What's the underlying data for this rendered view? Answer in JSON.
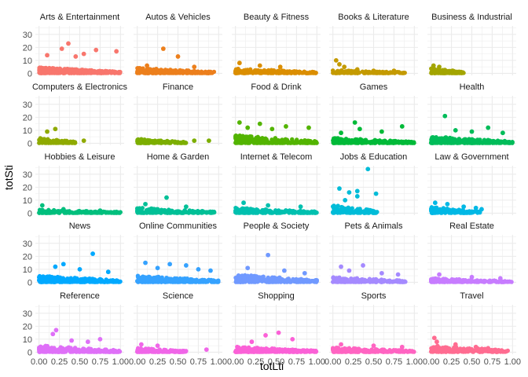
{
  "chart_data": {
    "type": "scatter",
    "layout": "facet-grid",
    "xlabel": "totLti",
    "ylabel": "totSti",
    "xlim": [
      0,
      1
    ],
    "ylim": [
      0,
      35
    ],
    "x_ticks": [
      "0.00",
      "0.25",
      "0.50",
      "0.75",
      "1.00"
    ],
    "y_ticks": [
      "0",
      "10",
      "20",
      "30"
    ],
    "grid": true,
    "legend": "none",
    "panels": [
      {
        "name": "Arts & Entertainment",
        "color": "#F8766D",
        "density": 1.0,
        "x_max": 1.0,
        "base_max": 4.5,
        "outliers": [
          [
            0.36,
            23
          ],
          [
            0.28,
            19
          ],
          [
            0.7,
            18
          ],
          [
            0.95,
            17
          ],
          [
            0.55,
            15
          ],
          [
            0.1,
            14
          ],
          [
            0.45,
            13
          ]
        ]
      },
      {
        "name": "Autos & Vehicles",
        "color": "#EC7F1C",
        "density": 0.6,
        "x_max": 0.95,
        "base_max": 4,
        "outliers": [
          [
            0.32,
            19
          ],
          [
            0.5,
            13
          ],
          [
            0.12,
            6
          ],
          [
            0.7,
            5
          ]
        ]
      },
      {
        "name": "Beauty & Fitness",
        "color": "#DB8E00",
        "density": 0.6,
        "x_max": 1.0,
        "base_max": 3.5,
        "outliers": [
          [
            0.05,
            8
          ],
          [
            0.3,
            6
          ],
          [
            0.55,
            5
          ]
        ]
      },
      {
        "name": "Books & Literature",
        "color": "#C49A00",
        "density": 0.25,
        "x_max": 0.9,
        "base_max": 2.5,
        "outliers": [
          [
            0.04,
            10
          ],
          [
            0.08,
            7
          ],
          [
            0.14,
            5
          ],
          [
            0.3,
            3
          ],
          [
            0.5,
            2
          ],
          [
            0.75,
            2
          ]
        ]
      },
      {
        "name": "Business & Industrial",
        "color": "#A3A500",
        "density": 0.3,
        "x_max": 0.4,
        "base_max": 4,
        "outliers": [
          [
            0.03,
            6
          ],
          [
            0.1,
            5
          ]
        ]
      },
      {
        "name": "Computers & Electronics",
        "color": "#8FAA00",
        "density": 0.25,
        "x_max": 0.45,
        "base_max": 4,
        "outliers": [
          [
            0.2,
            11
          ],
          [
            0.1,
            9
          ],
          [
            0.55,
            2
          ]
        ]
      },
      {
        "name": "Finance",
        "color": "#7CAE00",
        "density": 0.25,
        "x_max": 0.6,
        "base_max": 3,
        "outliers": [
          [
            0.7,
            2
          ],
          [
            0.88,
            2
          ],
          [
            0.05,
            3
          ]
        ]
      },
      {
        "name": "Food & Drink",
        "color": "#53B400",
        "density": 1.0,
        "x_max": 1.0,
        "base_max": 6,
        "outliers": [
          [
            0.05,
            16
          ],
          [
            0.3,
            15
          ],
          [
            0.62,
            13
          ],
          [
            0.9,
            12
          ],
          [
            0.45,
            11
          ],
          [
            0.15,
            12
          ]
        ]
      },
      {
        "name": "Games",
        "color": "#00BA38",
        "density": 0.7,
        "x_max": 1.0,
        "base_max": 4,
        "outliers": [
          [
            0.27,
            16
          ],
          [
            0.33,
            11
          ],
          [
            0.6,
            9
          ],
          [
            0.85,
            13
          ],
          [
            0.1,
            8
          ]
        ]
      },
      {
        "name": "Health",
        "color": "#00BC59",
        "density": 0.8,
        "x_max": 1.0,
        "base_max": 5,
        "outliers": [
          [
            0.17,
            21
          ],
          [
            0.7,
            12
          ],
          [
            0.5,
            9
          ],
          [
            0.3,
            10
          ],
          [
            0.88,
            8
          ]
        ]
      },
      {
        "name": "Hobbies & Leisure",
        "color": "#00BF7D",
        "density": 0.45,
        "x_max": 1.0,
        "base_max": 2.5,
        "outliers": [
          [
            0.04,
            6
          ],
          [
            0.3,
            3
          ],
          [
            0.75,
            2
          ],
          [
            0.95,
            1
          ]
        ]
      },
      {
        "name": "Home & Garden",
        "color": "#00C097",
        "density": 0.45,
        "x_max": 0.95,
        "base_max": 4,
        "outliers": [
          [
            0.36,
            12
          ],
          [
            0.1,
            7
          ],
          [
            0.6,
            5
          ]
        ]
      },
      {
        "name": "Internet & Telecom",
        "color": "#00C0AF",
        "density": 0.55,
        "x_max": 1.0,
        "base_max": 4,
        "outliers": [
          [
            0.1,
            8
          ],
          [
            0.4,
            6
          ],
          [
            0.8,
            5
          ]
        ]
      },
      {
        "name": "Jobs & Education",
        "color": "#00BCD8",
        "density": 0.3,
        "x_max": 0.55,
        "base_max": 6,
        "outliers": [
          [
            0.43,
            34
          ],
          [
            0.08,
            19
          ],
          [
            0.3,
            17
          ],
          [
            0.2,
            16
          ],
          [
            0.53,
            15
          ],
          [
            0.3,
            13
          ],
          [
            0.15,
            10
          ]
        ]
      },
      {
        "name": "Law & Government",
        "color": "#00B8E5",
        "density": 0.3,
        "x_max": 0.6,
        "base_max": 5,
        "outliers": [
          [
            0.05,
            8
          ],
          [
            0.2,
            7
          ],
          [
            0.4,
            5
          ],
          [
            0.55,
            4
          ],
          [
            0.62,
            3
          ]
        ]
      },
      {
        "name": "News",
        "color": "#00A9FF",
        "density": 0.8,
        "x_max": 1.0,
        "base_max": 5,
        "outliers": [
          [
            0.66,
            22
          ],
          [
            0.3,
            14
          ],
          [
            0.2,
            12
          ],
          [
            0.5,
            10
          ],
          [
            0.85,
            8
          ]
        ]
      },
      {
        "name": "Online Communities",
        "color": "#35A2FF",
        "density": 0.8,
        "x_max": 1.0,
        "base_max": 5,
        "outliers": [
          [
            0.1,
            15
          ],
          [
            0.4,
            14
          ],
          [
            0.6,
            13
          ],
          [
            0.25,
            11
          ],
          [
            0.75,
            10
          ],
          [
            0.9,
            9
          ]
        ]
      },
      {
        "name": "People & Society",
        "color": "#7099FF",
        "density": 0.6,
        "x_max": 1.0,
        "base_max": 6,
        "outliers": [
          [
            0.4,
            21
          ],
          [
            0.15,
            11
          ],
          [
            0.6,
            9
          ],
          [
            0.85,
            7
          ]
        ]
      },
      {
        "name": "Pets & Animals",
        "color": "#A58AFF",
        "density": 0.4,
        "x_max": 0.9,
        "base_max": 4,
        "outliers": [
          [
            0.37,
            13
          ],
          [
            0.1,
            12
          ],
          [
            0.2,
            9
          ],
          [
            0.6,
            7
          ],
          [
            0.8,
            6
          ]
        ]
      },
      {
        "name": "Real Estate",
        "color": "#C77CFF",
        "density": 0.55,
        "x_max": 1.0,
        "base_max": 3,
        "outliers": [
          [
            0.1,
            6
          ],
          [
            0.5,
            4
          ],
          [
            0.85,
            3
          ]
        ]
      },
      {
        "name": "Reference",
        "color": "#DF70F8",
        "density": 0.8,
        "x_max": 1.0,
        "base_max": 5,
        "outliers": [
          [
            0.21,
            17
          ],
          [
            0.17,
            14
          ],
          [
            0.75,
            10
          ],
          [
            0.4,
            9
          ],
          [
            0.6,
            8
          ]
        ]
      },
      {
        "name": "Science",
        "color": "#F066E8",
        "density": 0.35,
        "x_max": 0.6,
        "base_max": 3,
        "outliers": [
          [
            0.05,
            6
          ],
          [
            0.25,
            5
          ],
          [
            0.85,
            2
          ]
        ]
      },
      {
        "name": "Shopping",
        "color": "#FB61D7",
        "density": 0.7,
        "x_max": 1.0,
        "base_max": 4,
        "outliers": [
          [
            0.53,
            15
          ],
          [
            0.37,
            13
          ],
          [
            0.7,
            10
          ],
          [
            0.2,
            8
          ]
        ]
      },
      {
        "name": "Sports",
        "color": "#FF64C2",
        "density": 0.6,
        "x_max": 1.0,
        "base_max": 3.5,
        "outliers": [
          [
            0.1,
            6
          ],
          [
            0.5,
            5
          ],
          [
            0.85,
            4
          ]
        ]
      },
      {
        "name": "Travel",
        "color": "#FF6C91",
        "density": 0.5,
        "x_max": 0.95,
        "base_max": 5,
        "outliers": [
          [
            0.04,
            11
          ],
          [
            0.07,
            8
          ],
          [
            0.3,
            6
          ],
          [
            0.55,
            4
          ],
          [
            0.7,
            3
          ]
        ]
      }
    ]
  }
}
